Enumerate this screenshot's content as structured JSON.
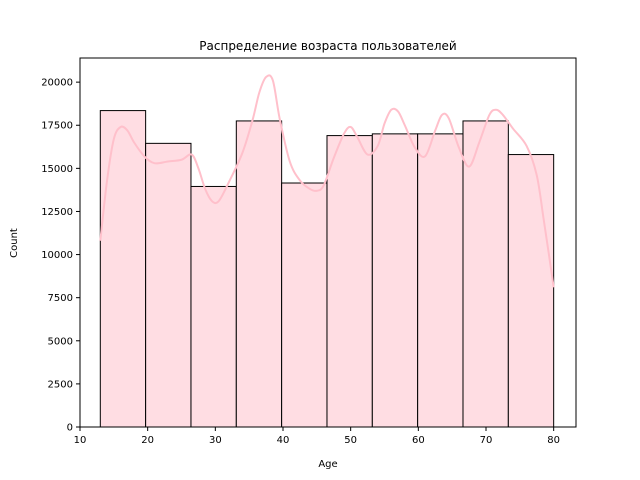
{
  "chart_data": {
    "type": "bar",
    "subtype": "histogram-with-kde",
    "title": "Распределение возраста пользователей",
    "xlabel": "Age",
    "ylabel": "Count",
    "xlim": [
      10,
      83.3
    ],
    "ylim": [
      0,
      21400
    ],
    "xticks": [
      10,
      20,
      30,
      40,
      50,
      60,
      70,
      80
    ],
    "yticks": [
      0,
      2500,
      5000,
      7500,
      10000,
      12500,
      15000,
      17500,
      20000
    ],
    "grid": false,
    "legend": "none",
    "bins": [
      {
        "start": 13.0,
        "end": 19.7,
        "count": 18350
      },
      {
        "start": 19.7,
        "end": 26.4,
        "count": 16450
      },
      {
        "start": 26.4,
        "end": 33.1,
        "count": 13950
      },
      {
        "start": 33.1,
        "end": 39.8,
        "count": 17750
      },
      {
        "start": 39.8,
        "end": 46.5,
        "count": 14150
      },
      {
        "start": 46.5,
        "end": 53.2,
        "count": 16900
      },
      {
        "start": 53.2,
        "end": 59.9,
        "count": 17000
      },
      {
        "start": 59.9,
        "end": 66.6,
        "count": 17000
      },
      {
        "start": 66.6,
        "end": 73.3,
        "count": 17750
      },
      {
        "start": 73.3,
        "end": 80.0,
        "count": 15800
      }
    ],
    "kde": {
      "x": [
        13.0,
        14.0,
        15.0,
        16.0,
        17.0,
        18.0,
        19.5,
        21.0,
        23.0,
        25.0,
        26.5,
        27.5,
        28.5,
        29.5,
        30.5,
        32.0,
        34.0,
        35.5,
        36.5,
        37.5,
        38.5,
        39.5,
        41.0,
        42.5,
        44.0,
        45.0,
        46.0,
        47.5,
        49.0,
        50.0,
        51.0,
        52.5,
        54.0,
        55.0,
        56.0,
        57.0,
        58.0,
        59.5,
        61.0,
        62.5,
        63.5,
        64.5,
        66.0,
        67.5,
        69.0,
        70.5,
        71.5,
        72.5,
        74.0,
        76.0,
        77.5,
        78.5,
        79.3,
        80.0
      ],
      "y": [
        10800,
        14300,
        16700,
        17400,
        17200,
        16500,
        15700,
        15300,
        15400,
        15500,
        15800,
        15000,
        13800,
        13100,
        13100,
        14200,
        15900,
        17800,
        19400,
        20300,
        20100,
        17900,
        15400,
        14300,
        13800,
        13700,
        14000,
        15600,
        17000,
        17400,
        16800,
        15800,
        16300,
        17600,
        18400,
        18300,
        17500,
        16200,
        15700,
        17200,
        18100,
        17900,
        16200,
        15100,
        16500,
        18100,
        18400,
        18100,
        17300,
        16300,
        14600,
        12100,
        10000,
        8100
      ]
    },
    "colors": {
      "bar_fill": "#ffdde3",
      "bar_edge": "#000000",
      "kde_line": "#ffc0cb"
    }
  }
}
